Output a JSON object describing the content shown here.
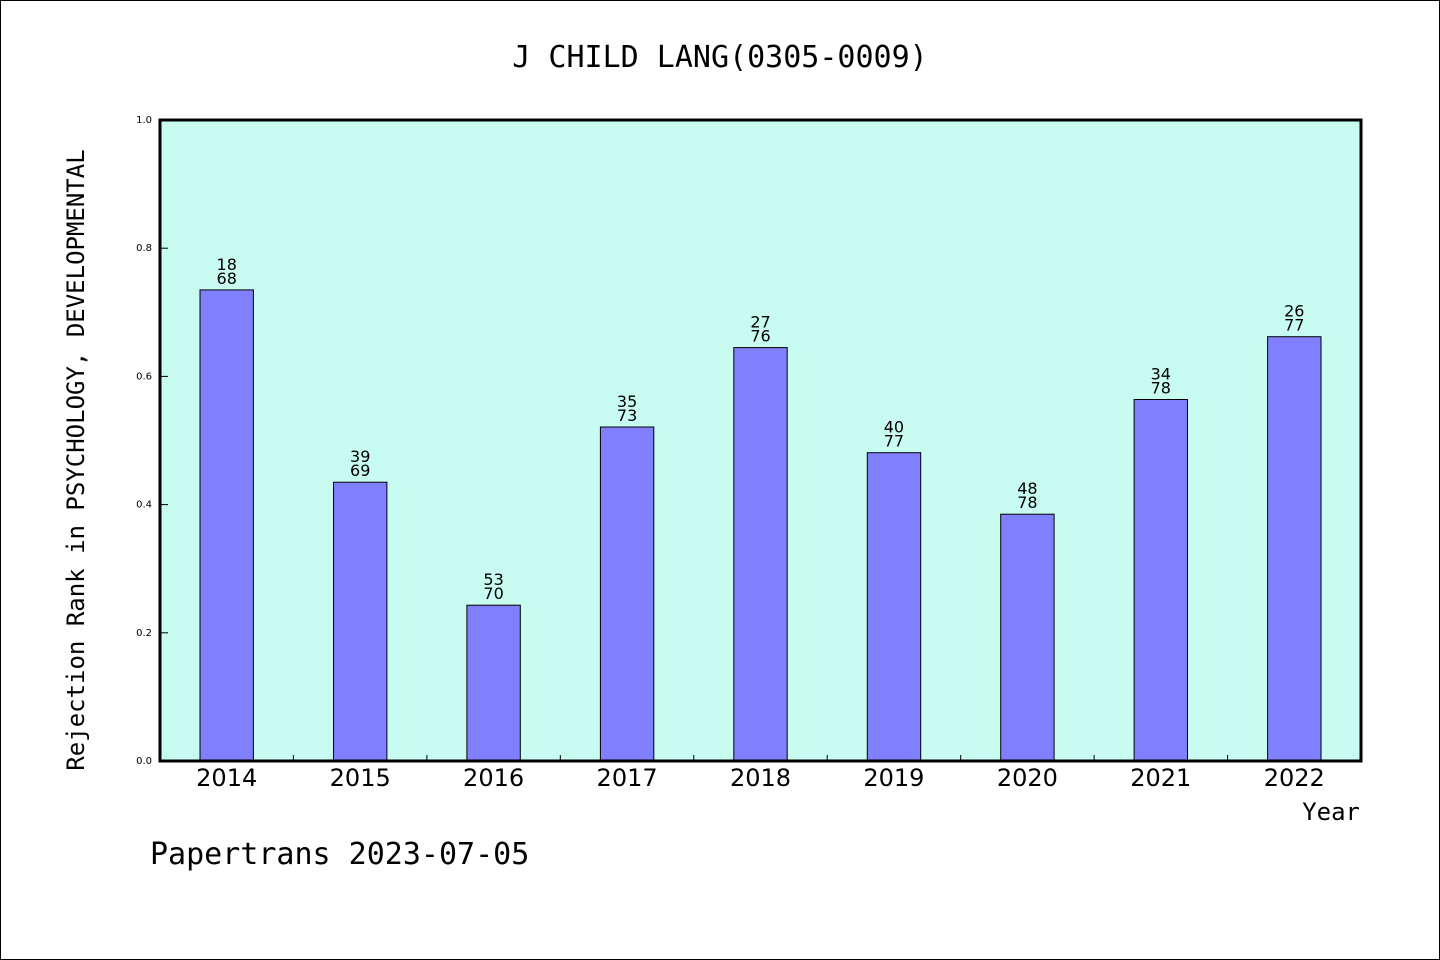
{
  "chart_data": {
    "type": "bar",
    "title": "J CHILD LANG(0305-0009)",
    "xlabel": "Year",
    "ylabel": "Rejection Rank in PSYCHOLOGY, DEVELOPMENTAL",
    "ylim": [
      0,
      1.0
    ],
    "yticks": [
      "0.0",
      "0.2",
      "0.4",
      "0.6",
      "0.8",
      "1.0"
    ],
    "categories": [
      "2014",
      "2015",
      "2016",
      "2017",
      "2018",
      "2019",
      "2020",
      "2021",
      "2022"
    ],
    "values": [
      0.735,
      0.435,
      0.243,
      0.521,
      0.645,
      0.481,
      0.385,
      0.564,
      0.662
    ],
    "rank": [
      "18",
      "39",
      "53",
      "35",
      "27",
      "40",
      "48",
      "34",
      "26"
    ],
    "total": [
      "68",
      "69",
      "70",
      "73",
      "76",
      "77",
      "78",
      "78",
      "77"
    ],
    "grid": false,
    "legend": "none",
    "colors": {
      "bar_fill": "#8080ff",
      "plot_background": "#c8fcf0",
      "axis": "#000000"
    }
  },
  "footer": {
    "text": "Papertrans 2023-07-05"
  }
}
